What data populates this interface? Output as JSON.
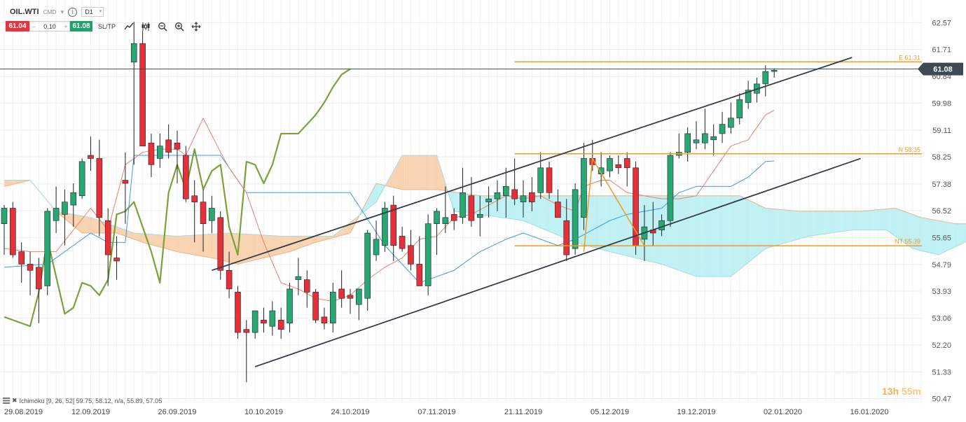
{
  "header": {
    "symbol": "OIL.WTI",
    "instrument_type": "CMD",
    "timeframe": "D1",
    "info_icon": "info-circle-icon",
    "dropdown_icon": "chevron-down-icon"
  },
  "trade": {
    "sell_price": "61.04",
    "buy_price": "61.08",
    "volume": "0.10",
    "minus": "–",
    "plus": "+",
    "sltp_label": "SL/TP",
    "tools": [
      "line-chart-icon",
      "candlestick-icon",
      "zoom-out-icon",
      "zoom-in-icon",
      "crosshair-move-icon"
    ]
  },
  "indicator": {
    "label": "Ichimoku [9, 26, 52] 59.75, 58.12, n/a, 55.89, 57.05"
  },
  "timer": {
    "hours": "13h",
    "minutes": "55m"
  },
  "colors": {
    "up": "#26a774",
    "down": "#e5303a",
    "chikou": "#7aa23b",
    "tenkan": "#e8826a",
    "kijun": "#3d9be0",
    "cloud_bull": "#bff0f3",
    "cloud_bear": "#f9d2b0",
    "channel": "#333d47",
    "harmonic": "#f29a22",
    "current_price": "#3d4a55"
  },
  "chart_data": {
    "type": "candlestick",
    "symbol": "OIL.WTI",
    "timeframe": "D1",
    "y_ticks": [
      62.57,
      61.71,
      60.84,
      59.98,
      59.11,
      58.25,
      57.38,
      56.52,
      55.65,
      54.79,
      53.93,
      53.06,
      52.2,
      51.33,
      50.47
    ],
    "x_labels": [
      "29.08.2019",
      "12.09.2019",
      "26.09.2019",
      "10.10.2019",
      "24.10.2019",
      "07.11.2019",
      "21.11.2019",
      "05.12.2019",
      "19.12.2019",
      "02.01.2020",
      "16.01.2020"
    ],
    "y_range": [
      50.35,
      63.3
    ],
    "x_range": [
      0,
      113
    ],
    "current_price": {
      "value": 61.08,
      "label": "61.08"
    },
    "candles_ohlc": [
      [
        0,
        56.1,
        56.7,
        55.1,
        56.6
      ],
      [
        1,
        56.6,
        56.8,
        55.0,
        55.1
      ],
      [
        2,
        55.2,
        55.5,
        54.2,
        54.8
      ],
      [
        3,
        54.8,
        55.2,
        53.8,
        54.6
      ],
      [
        4,
        54.7,
        55.0,
        52.9,
        54.0
      ],
      [
        5,
        54.1,
        56.6,
        53.8,
        56.5
      ],
      [
        6,
        56.2,
        57.3,
        55.8,
        56.6
      ],
      [
        7,
        56.4,
        57.2,
        55.4,
        56.8
      ],
      [
        8,
        56.7,
        57.4,
        56.0,
        57.1
      ],
      [
        9,
        57.0,
        58.2,
        56.9,
        58.1
      ],
      [
        10,
        58.3,
        58.9,
        57.8,
        58.2
      ],
      [
        11,
        58.2,
        58.8,
        55.7,
        56.3
      ],
      [
        12,
        56.2,
        56.6,
        54.1,
        55.1
      ],
      [
        13,
        55.0,
        55.7,
        54.3,
        54.9
      ],
      [
        14,
        57.5,
        58.4,
        56.1,
        57.4
      ],
      [
        15,
        61.3,
        62.6,
        58.0,
        61.9
      ],
      [
        16,
        61.9,
        62.3,
        58.7,
        58.6
      ],
      [
        17,
        58.7,
        59.0,
        57.6,
        58.0
      ],
      [
        18,
        58.2,
        59.0,
        57.9,
        58.6
      ],
      [
        19,
        58.8,
        59.3,
        58.2,
        58.4
      ],
      [
        20,
        58.7,
        59.1,
        57.4,
        58.5
      ],
      [
        21,
        58.3,
        58.6,
        56.8,
        56.9
      ],
      [
        22,
        57.0,
        57.5,
        55.5,
        56.8
      ],
      [
        23,
        56.8,
        57.2,
        55.2,
        56.1
      ],
      [
        24,
        56.2,
        57.0,
        55.8,
        56.6
      ],
      [
        25,
        56.3,
        56.5,
        54.3,
        54.6
      ],
      [
        26,
        54.6,
        55.2,
        53.7,
        54.0
      ],
      [
        27,
        53.9,
        54.1,
        52.4,
        52.6
      ],
      [
        28,
        52.7,
        53.0,
        51.0,
        52.6
      ],
      [
        29,
        52.6,
        53.3,
        52.4,
        53.3
      ],
      [
        30,
        53.0,
        53.4,
        52.6,
        52.9
      ],
      [
        31,
        52.8,
        53.6,
        52.5,
        53.3
      ],
      [
        32,
        53.0,
        53.4,
        52.4,
        52.7
      ],
      [
        33,
        52.9,
        54.2,
        52.6,
        54.0
      ],
      [
        34,
        54.3,
        55.0,
        53.8,
        54.4
      ],
      [
        35,
        54.3,
        54.6,
        53.4,
        53.9
      ],
      [
        36,
        53.9,
        54.0,
        52.9,
        53.0
      ],
      [
        37,
        53.1,
        53.4,
        52.7,
        52.9
      ],
      [
        38,
        52.9,
        54.2,
        52.6,
        53.9
      ],
      [
        39,
        54.0,
        54.6,
        53.4,
        53.7
      ],
      [
        40,
        53.8,
        54.0,
        53.2,
        53.7
      ],
      [
        41,
        53.5,
        54.0,
        53.0,
        54.0
      ],
      [
        42,
        53.7,
        55.9,
        53.3,
        55.8
      ],
      [
        43,
        55.1,
        56.2,
        54.9,
        55.6
      ],
      [
        44,
        55.4,
        56.8,
        55.2,
        56.6
      ],
      [
        45,
        56.7,
        57.0,
        54.9,
        55.4
      ],
      [
        46,
        55.7,
        56.0,
        55.2,
        55.3
      ],
      [
        47,
        55.4,
        55.9,
        54.6,
        54.8
      ],
      [
        48,
        54.8,
        55.7,
        54.2,
        54.1
      ],
      [
        49,
        54.1,
        56.4,
        53.8,
        56.1
      ],
      [
        50,
        56.1,
        56.6,
        55.1,
        56.5
      ],
      [
        51,
        56.1,
        57.3,
        55.8,
        56.3
      ],
      [
        52,
        56.4,
        56.6,
        55.9,
        56.2
      ],
      [
        53,
        56.3,
        57.9,
        56.1,
        57.1
      ],
      [
        54,
        57.0,
        57.6,
        56.0,
        56.2
      ],
      [
        55,
        56.3,
        57.0,
        55.7,
        56.4
      ],
      [
        56,
        56.8,
        57.3,
        56.3,
        56.9
      ],
      [
        57,
        56.9,
        57.5,
        56.5,
        57.1
      ],
      [
        58,
        57.0,
        57.9,
        56.3,
        57.3
      ],
      [
        59,
        57.2,
        58.2,
        56.7,
        56.9
      ],
      [
        60,
        56.8,
        57.5,
        56.3,
        57.0
      ],
      [
        61,
        57.1,
        57.6,
        56.5,
        56.8
      ],
      [
        62,
        57.1,
        58.4,
        56.9,
        57.9
      ],
      [
        63,
        57.9,
        58.1,
        56.9,
        57.1
      ],
      [
        64,
        56.8,
        57.2,
        56.3,
        56.3
      ],
      [
        65,
        56.2,
        56.9,
        54.9,
        55.1
      ],
      [
        66,
        55.3,
        57.4,
        55.1,
        57.2
      ],
      [
        67,
        56.3,
        58.7,
        55.9,
        58.2
      ],
      [
        68,
        58.2,
        58.8,
        57.8,
        58.0
      ],
      [
        69,
        57.7,
        58.4,
        57.3,
        57.9
      ],
      [
        70,
        57.8,
        58.3,
        57.6,
        58.2
      ],
      [
        71,
        58.0,
        58.3,
        57.7,
        57.9
      ],
      [
        72,
        58.2,
        58.4,
        57.3,
        57.9
      ],
      [
        73,
        57.9,
        58.1,
        55.1,
        55.4
      ],
      [
        74,
        55.6,
        56.7,
        54.9,
        56.0
      ],
      [
        75,
        55.9,
        56.8,
        55.4,
        55.8
      ],
      [
        76,
        55.9,
        56.4,
        55.7,
        56.2
      ],
      [
        77,
        56.2,
        58.4,
        56.0,
        58.3
      ],
      [
        78,
        58.3,
        59.0,
        58.2,
        58.4
      ],
      [
        79,
        58.4,
        59.2,
        58.1,
        59.0
      ],
      [
        80,
        58.7,
        59.4,
        58.5,
        58.8
      ],
      [
        81,
        58.7,
        59.8,
        58.5,
        59.0
      ],
      [
        82,
        58.8,
        59.3,
        58.3,
        58.9
      ],
      [
        83,
        59.0,
        59.7,
        58.7,
        59.3
      ],
      [
        84,
        59.2,
        60.0,
        59.0,
        59.5
      ],
      [
        85,
        59.5,
        60.3,
        59.3,
        60.1
      ],
      [
        86,
        60.0,
        60.7,
        59.8,
        60.4
      ],
      [
        87,
        60.3,
        60.8,
        60.0,
        60.6
      ],
      [
        88,
        60.6,
        61.2,
        60.2,
        61.0
      ],
      [
        89,
        61.0,
        61.1,
        60.8,
        61.04
      ]
    ],
    "ichimoku": {
      "params": [
        9,
        26,
        52
      ],
      "tenkan": [
        [
          0,
          55.3
        ],
        [
          3,
          55.2
        ],
        [
          6,
          55.2
        ],
        [
          10,
          56.6
        ],
        [
          12,
          55.9
        ],
        [
          14,
          58.0
        ],
        [
          16,
          58.4
        ],
        [
          18,
          58.5
        ],
        [
          20,
          58.5
        ],
        [
          21,
          58.3
        ],
        [
          23,
          59.5
        ],
        [
          25,
          58.4
        ],
        [
          26,
          57.9
        ],
        [
          28,
          57.1
        ],
        [
          30,
          55.5
        ],
        [
          32,
          54.2
        ],
        [
          34,
          54.0
        ],
        [
          36,
          53.7
        ],
        [
          38,
          53.6
        ],
        [
          40,
          53.8
        ],
        [
          42,
          54.3
        ],
        [
          44,
          54.7
        ],
        [
          46,
          55.0
        ],
        [
          48,
          55.6
        ],
        [
          50,
          55.7
        ],
        [
          52,
          56.3
        ],
        [
          54,
          56.4
        ],
        [
          56,
          56.7
        ],
        [
          58,
          57.0
        ],
        [
          60,
          56.9
        ],
        [
          62,
          57.0
        ],
        [
          64,
          56.7
        ],
        [
          66,
          56.5
        ],
        [
          67,
          57.3
        ],
        [
          69,
          57.5
        ],
        [
          70,
          57.5
        ],
        [
          72,
          57.1
        ],
        [
          74,
          57.0
        ],
        [
          76,
          56.9
        ],
        [
          78,
          56.9
        ],
        [
          80,
          57.0
        ],
        [
          82,
          57.8
        ],
        [
          84,
          58.6
        ],
        [
          86,
          58.8
        ],
        [
          88,
          59.6
        ],
        [
          89,
          59.75
        ]
      ],
      "kijun": [
        [
          0,
          54.7
        ],
        [
          5,
          54.8
        ],
        [
          8,
          55.4
        ],
        [
          10,
          55.8
        ],
        [
          12,
          55.5
        ],
        [
          14,
          55.5
        ],
        [
          15,
          58.3
        ],
        [
          25,
          58.3
        ],
        [
          28,
          57.1
        ],
        [
          38,
          57.1
        ],
        [
          40,
          57.1
        ],
        [
          44,
          55.4
        ],
        [
          48,
          54.2
        ],
        [
          50,
          54.4
        ],
        [
          52,
          54.6
        ],
        [
          55,
          55.2
        ],
        [
          58,
          55.6
        ],
        [
          60,
          55.8
        ],
        [
          64,
          55.4
        ],
        [
          66,
          55.6
        ],
        [
          70,
          56.2
        ],
        [
          72,
          56.4
        ],
        [
          76,
          56.6
        ],
        [
          78,
          57.1
        ],
        [
          80,
          57.3
        ],
        [
          84,
          57.3
        ],
        [
          86,
          57.6
        ],
        [
          88,
          58.1
        ],
        [
          89,
          58.12
        ]
      ],
      "chikou": [
        [
          0,
          53.1
        ],
        [
          2,
          52.9
        ],
        [
          3,
          52.8
        ],
        [
          4,
          53.9
        ],
        [
          5,
          55.6
        ],
        [
          6,
          54.4
        ],
        [
          7,
          53.2
        ],
        [
          8,
          53.4
        ],
        [
          9,
          54.2
        ],
        [
          10,
          54.1
        ],
        [
          11,
          53.8
        ],
        [
          12,
          54.3
        ],
        [
          13,
          56.4
        ],
        [
          14,
          56.5
        ],
        [
          15,
          56.8
        ],
        [
          16,
          56.0
        ],
        [
          17,
          55.2
        ],
        [
          18,
          54.2
        ],
        [
          19,
          57.1
        ],
        [
          20,
          58.0
        ],
        [
          21,
          57.2
        ],
        [
          22,
          58.5
        ],
        [
          23,
          57.2
        ],
        [
          24,
          57.8
        ],
        [
          25,
          58.0
        ],
        [
          26,
          56.0
        ],
        [
          27,
          55.1
        ],
        [
          28,
          58.1
        ],
        [
          29,
          58.0
        ],
        [
          30,
          57.4
        ],
        [
          31,
          58.0
        ],
        [
          32,
          59.0
        ],
        [
          33,
          59.0
        ],
        [
          34,
          59.0
        ],
        [
          35,
          59.3
        ],
        [
          36,
          59.6
        ],
        [
          37,
          60.0
        ],
        [
          38,
          60.5
        ],
        [
          39,
          60.9
        ],
        [
          40,
          61.08
        ]
      ],
      "senkou_a": [
        [
          0,
          57.3
        ],
        [
          3,
          57.5
        ],
        [
          6,
          56.5
        ],
        [
          9,
          55.8
        ],
        [
          13,
          55.8
        ],
        [
          16,
          55.5
        ],
        [
          20,
          55.2
        ],
        [
          24,
          55.0
        ],
        [
          27,
          54.8
        ],
        [
          30,
          55.0
        ],
        [
          33,
          55.2
        ],
        [
          36,
          55.5
        ],
        [
          40,
          55.8
        ],
        [
          43,
          57.4
        ],
        [
          46,
          57.2
        ],
        [
          50,
          57.2
        ],
        [
          55,
          57.0
        ],
        [
          60,
          57.0
        ],
        [
          65,
          57.0
        ],
        [
          70,
          57.0
        ],
        [
          75,
          57.0
        ],
        [
          80,
          57.0
        ],
        [
          85,
          57.0
        ],
        [
          88,
          56.6
        ],
        [
          92,
          56.5
        ],
        [
          96,
          56.5
        ],
        [
          99,
          56.5
        ],
        [
          103,
          56.6
        ],
        [
          106,
          56.3
        ],
        [
          110,
          56.1
        ],
        [
          113,
          56.1
        ]
      ],
      "senkou_b": [
        [
          0,
          57.5
        ],
        [
          3,
          57.5
        ],
        [
          6,
          56.5
        ],
        [
          10,
          56.3
        ],
        [
          15,
          55.8
        ],
        [
          20,
          55.7
        ],
        [
          26,
          55.8
        ],
        [
          32,
          55.7
        ],
        [
          38,
          55.7
        ],
        [
          43,
          56.8
        ],
        [
          46,
          58.3
        ],
        [
          50,
          58.3
        ],
        [
          52,
          56.5
        ],
        [
          55,
          56.4
        ],
        [
          60,
          56.2
        ],
        [
          66,
          55.5
        ],
        [
          70,
          55.2
        ],
        [
          76,
          54.8
        ],
        [
          80,
          54.4
        ],
        [
          84,
          54.4
        ],
        [
          88,
          55.3
        ],
        [
          93,
          55.7
        ],
        [
          98,
          55.9
        ],
        [
          102,
          55.9
        ],
        [
          105,
          55.3
        ],
        [
          108,
          55.1
        ],
        [
          111,
          55.5
        ],
        [
          114,
          55.8
        ]
      ]
    },
    "price_lines": [
      {
        "label": "E 61.31",
        "value": 61.31
      },
      {
        "label": "N 58.35",
        "value": 58.35
      },
      {
        "label": "NT 55.39",
        "value": 55.39
      }
    ],
    "channel": {
      "upper": {
        "from": [
          24,
          54.6
        ],
        "to": [
          98,
          61.45
        ]
      },
      "lower": {
        "from": [
          29,
          51.5
        ],
        "to": [
          99,
          58.2
        ]
      }
    },
    "harmonic_zigzag": [
      [
        67,
        55.2
      ],
      [
        68,
        58.2
      ],
      [
        74,
        55.39
      ]
    ]
  }
}
